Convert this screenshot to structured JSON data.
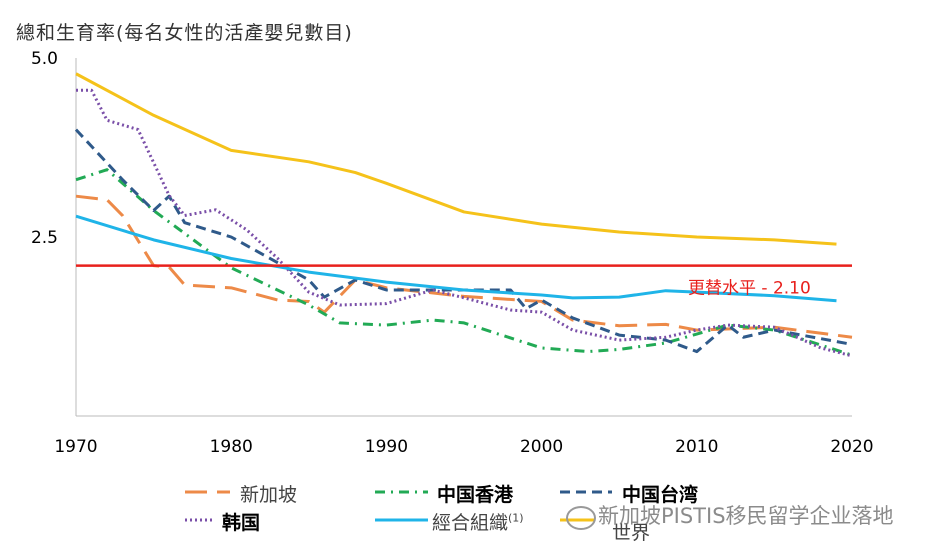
{
  "chart_data": {
    "type": "line",
    "title": "總和生育率(每名女性的活產嬰兒數目)",
    "xlim": [
      1970,
      2020
    ],
    "ylim": [
      0,
      5.0
    ],
    "x_ticks": [
      "1970",
      "1980",
      "1990",
      "2000",
      "2010",
      "2020"
    ],
    "y_ticks": [
      "2.5",
      "5.0"
    ],
    "grid": false,
    "legend_placement": "bottom",
    "reference_line": {
      "value": 2.1,
      "label": "更替水平  - 2.10",
      "color": "#e8201c"
    },
    "series": [
      {
        "name": "新加坡",
        "color": "#ed8a48",
        "style": "longdash",
        "points": [
          [
            1970,
            3.07
          ],
          [
            1972,
            3.02
          ],
          [
            1973,
            2.8
          ],
          [
            1975,
            2.1
          ],
          [
            1976,
            2.08
          ],
          [
            1977,
            1.83
          ],
          [
            1980,
            1.79
          ],
          [
            1983,
            1.62
          ],
          [
            1985,
            1.6
          ],
          [
            1986,
            1.45
          ],
          [
            1988,
            1.9
          ],
          [
            1990,
            1.79
          ],
          [
            1995,
            1.67
          ],
          [
            2000,
            1.6
          ],
          [
            2002,
            1.34
          ],
          [
            2005,
            1.26
          ],
          [
            2008,
            1.28
          ],
          [
            2010,
            1.2
          ],
          [
            2015,
            1.24
          ],
          [
            2020,
            1.1
          ]
        ]
      },
      {
        "name": "中国香港",
        "color": "#22aa55",
        "style": "dashdot",
        "points": [
          [
            1970,
            3.3
          ],
          [
            1972,
            3.44
          ],
          [
            1975,
            2.87
          ],
          [
            1980,
            2.07
          ],
          [
            1985,
            1.55
          ],
          [
            1987,
            1.3
          ],
          [
            1990,
            1.27
          ],
          [
            1993,
            1.34
          ],
          [
            1995,
            1.3
          ],
          [
            2000,
            0.95
          ],
          [
            2003,
            0.9
          ],
          [
            2005,
            0.93
          ],
          [
            2008,
            1.02
          ],
          [
            2012,
            1.27
          ],
          [
            2015,
            1.2
          ],
          [
            2020,
            0.85
          ]
        ]
      },
      {
        "name": "中国台湾",
        "color": "#2f5a8a",
        "style": "dash",
        "points": [
          [
            1970,
            4.0
          ],
          [
            1973,
            3.3
          ],
          [
            1975,
            2.87
          ],
          [
            1976,
            3.07
          ],
          [
            1977,
            2.7
          ],
          [
            1980,
            2.5
          ],
          [
            1985,
            1.9
          ],
          [
            1986,
            1.66
          ],
          [
            1988,
            1.9
          ],
          [
            1990,
            1.76
          ],
          [
            1995,
            1.76
          ],
          [
            1998,
            1.76
          ],
          [
            1999,
            1.5
          ],
          [
            2000,
            1.62
          ],
          [
            2002,
            1.37
          ],
          [
            2005,
            1.13
          ],
          [
            2008,
            1.06
          ],
          [
            2010,
            0.9
          ],
          [
            2012,
            1.27
          ],
          [
            2013,
            1.1
          ],
          [
            2015,
            1.2
          ],
          [
            2020,
            1.0
          ]
        ]
      },
      {
        "name": "韩国",
        "color": "#7a4fa8",
        "style": "dotted",
        "points": [
          [
            1970,
            4.55
          ],
          [
            1971,
            4.55
          ],
          [
            1972,
            4.13
          ],
          [
            1974,
            4.0
          ],
          [
            1976,
            3.08
          ],
          [
            1977,
            2.8
          ],
          [
            1979,
            2.88
          ],
          [
            1981,
            2.6
          ],
          [
            1983,
            2.2
          ],
          [
            1985,
            1.73
          ],
          [
            1987,
            1.55
          ],
          [
            1990,
            1.57
          ],
          [
            1993,
            1.76
          ],
          [
            1995,
            1.65
          ],
          [
            1998,
            1.48
          ],
          [
            2000,
            1.45
          ],
          [
            2002,
            1.2
          ],
          [
            2005,
            1.06
          ],
          [
            2008,
            1.1
          ],
          [
            2010,
            1.2
          ],
          [
            2012,
            1.27
          ],
          [
            2015,
            1.24
          ],
          [
            2018,
            0.95
          ],
          [
            2020,
            0.84
          ]
        ]
      },
      {
        "name": "經合組織",
        "superscript": "(1)",
        "color": "#1fb4e8",
        "style": "solid",
        "points": [
          [
            1970,
            2.79
          ],
          [
            1975,
            2.46
          ],
          [
            1980,
            2.2
          ],
          [
            1985,
            2.01
          ],
          [
            1990,
            1.87
          ],
          [
            1995,
            1.76
          ],
          [
            2000,
            1.69
          ],
          [
            2002,
            1.65
          ],
          [
            2005,
            1.66
          ],
          [
            2008,
            1.75
          ],
          [
            2010,
            1.73
          ],
          [
            2015,
            1.68
          ],
          [
            2019,
            1.61
          ]
        ]
      },
      {
        "name": "世界",
        "color": "#f5c21a",
        "style": "solid",
        "points": [
          [
            1970,
            4.78
          ],
          [
            1975,
            4.2
          ],
          [
            1980,
            3.71
          ],
          [
            1985,
            3.55
          ],
          [
            1988,
            3.4
          ],
          [
            1990,
            3.25
          ],
          [
            1995,
            2.85
          ],
          [
            2000,
            2.68
          ],
          [
            2005,
            2.57
          ],
          [
            2010,
            2.5
          ],
          [
            2015,
            2.46
          ],
          [
            2019,
            2.4
          ]
        ]
      }
    ]
  },
  "watermark": "新加坡PISTIS移民留学企业落地"
}
